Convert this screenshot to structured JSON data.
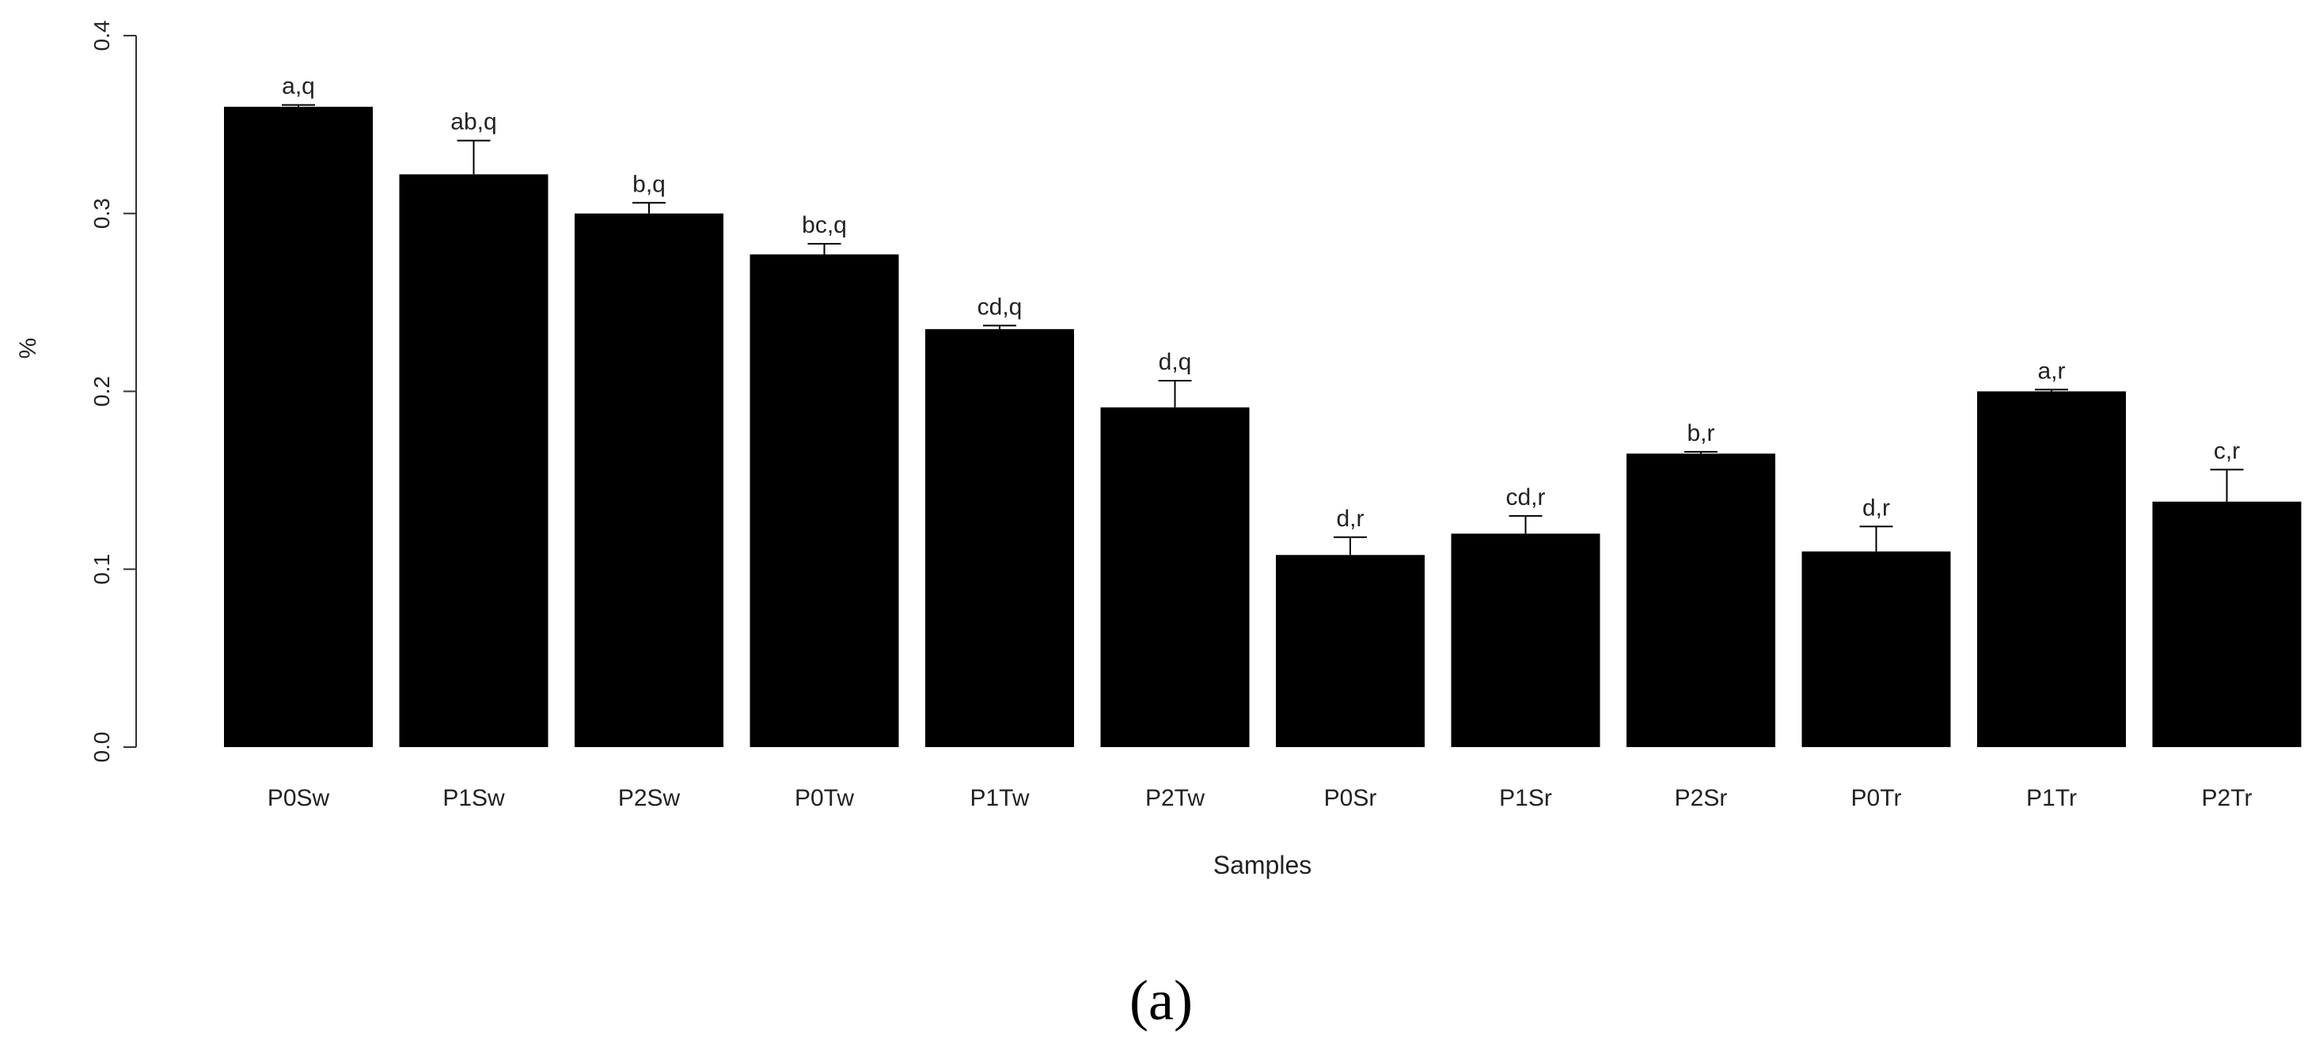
{
  "chart_data": {
    "type": "bar",
    "title": "",
    "xlabel": "Samples",
    "ylabel": "%",
    "ylim": [
      0,
      0.4
    ],
    "yticks": [
      "0.0",
      "0.1",
      "0.2",
      "0.3",
      "0.4"
    ],
    "categories": [
      "P0Sw",
      "P1Sw",
      "P2Sw",
      "P0Tw",
      "P1Tw",
      "P2Tw",
      "P0Sr",
      "P1Sr",
      "P2Sr",
      "P0Tr",
      "P1Tr",
      "P2Tr"
    ],
    "values": [
      0.36,
      0.322,
      0.3,
      0.277,
      0.235,
      0.191,
      0.108,
      0.12,
      0.165,
      0.11,
      0.2,
      0.138
    ],
    "error_upper": [
      0.361,
      0.341,
      0.306,
      0.283,
      0.237,
      0.206,
      0.118,
      0.13,
      0.166,
      0.124,
      0.201,
      0.156
    ],
    "annotations": [
      "a,q",
      "ab,q",
      "b,q",
      "bc,q",
      "cd,q",
      "d,q",
      "d,r",
      "cd,r",
      "b,r",
      "d,r",
      "a,r",
      "c,r"
    ],
    "bar_color": "#000000",
    "grid": false,
    "legend": "none"
  },
  "caption": "(a)"
}
